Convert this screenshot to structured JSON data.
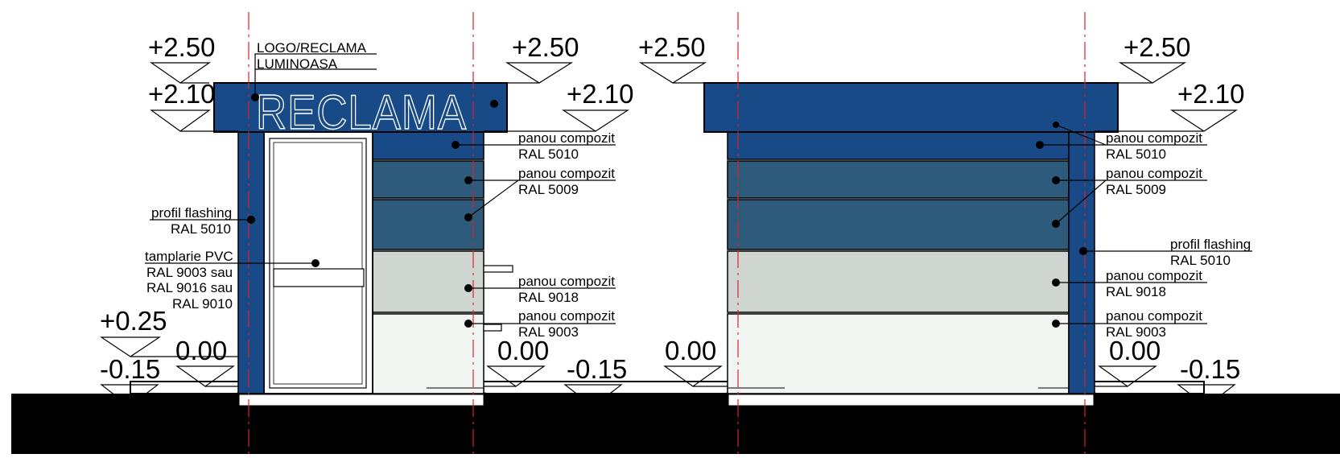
{
  "colors": {
    "ral5010": "#174a87",
    "ral5009": "#2e5b7c",
    "ral9018": "#cfd5d1",
    "ral9003": "#f1f6f3",
    "ground": "#000000",
    "axis": "#e0202a"
  },
  "sign_text": "RECLAMA",
  "left_elevation": {
    "levels": {
      "top_left": "+2.50",
      "top_right": "+2.50",
      "canopy_left": "+2.10",
      "canopy_right": "+2.10",
      "plinth": "+0.25",
      "zero_left": "0.00",
      "zero_right": "0.00",
      "minus_left": "-0.15",
      "minus_right": "-0.15"
    },
    "labels": {
      "logo_line1": "LOGO/RECLAMA",
      "logo_line2": "LUMINOASA",
      "flashing_line1": "profil flashing",
      "flashing_line2": "RAL 5010",
      "pvc_line1": "tamplarie PVC",
      "pvc_line2": "RAL 9003 sau",
      "pvc_line3": "RAL 9016 sau",
      "pvc_line4": "RAL 9010",
      "p5010_line1": "panou compozit",
      "p5010_line2": "RAL 5010",
      "p5009_line1": "panou compozit",
      "p5009_line2": "RAL 5009",
      "p9018_line1": "panou compozit",
      "p9018_line2": "RAL 9018",
      "p9003_line1": "panou compozit",
      "p9003_line2": "RAL 9003"
    }
  },
  "right_elevation": {
    "levels": {
      "top_left": "+2.50",
      "top_right": "+2.50",
      "canopy_right": "+2.10",
      "zero_left": "0.00",
      "zero_right": "0.00",
      "minus_right": "-0.15"
    },
    "labels": {
      "p5010_line1": "panou compozit",
      "p5010_line2": "RAL 5010",
      "p5009_line1": "panou compozit",
      "p5009_line2": "RAL 5009",
      "flashing_line1": "profil flashing",
      "flashing_line2": "RAL 5010",
      "p9018_line1": "panou compozit",
      "p9018_line2": "RAL 9018",
      "p9003_line1": "panou compozit",
      "p9003_line2": "RAL 9003"
    }
  }
}
